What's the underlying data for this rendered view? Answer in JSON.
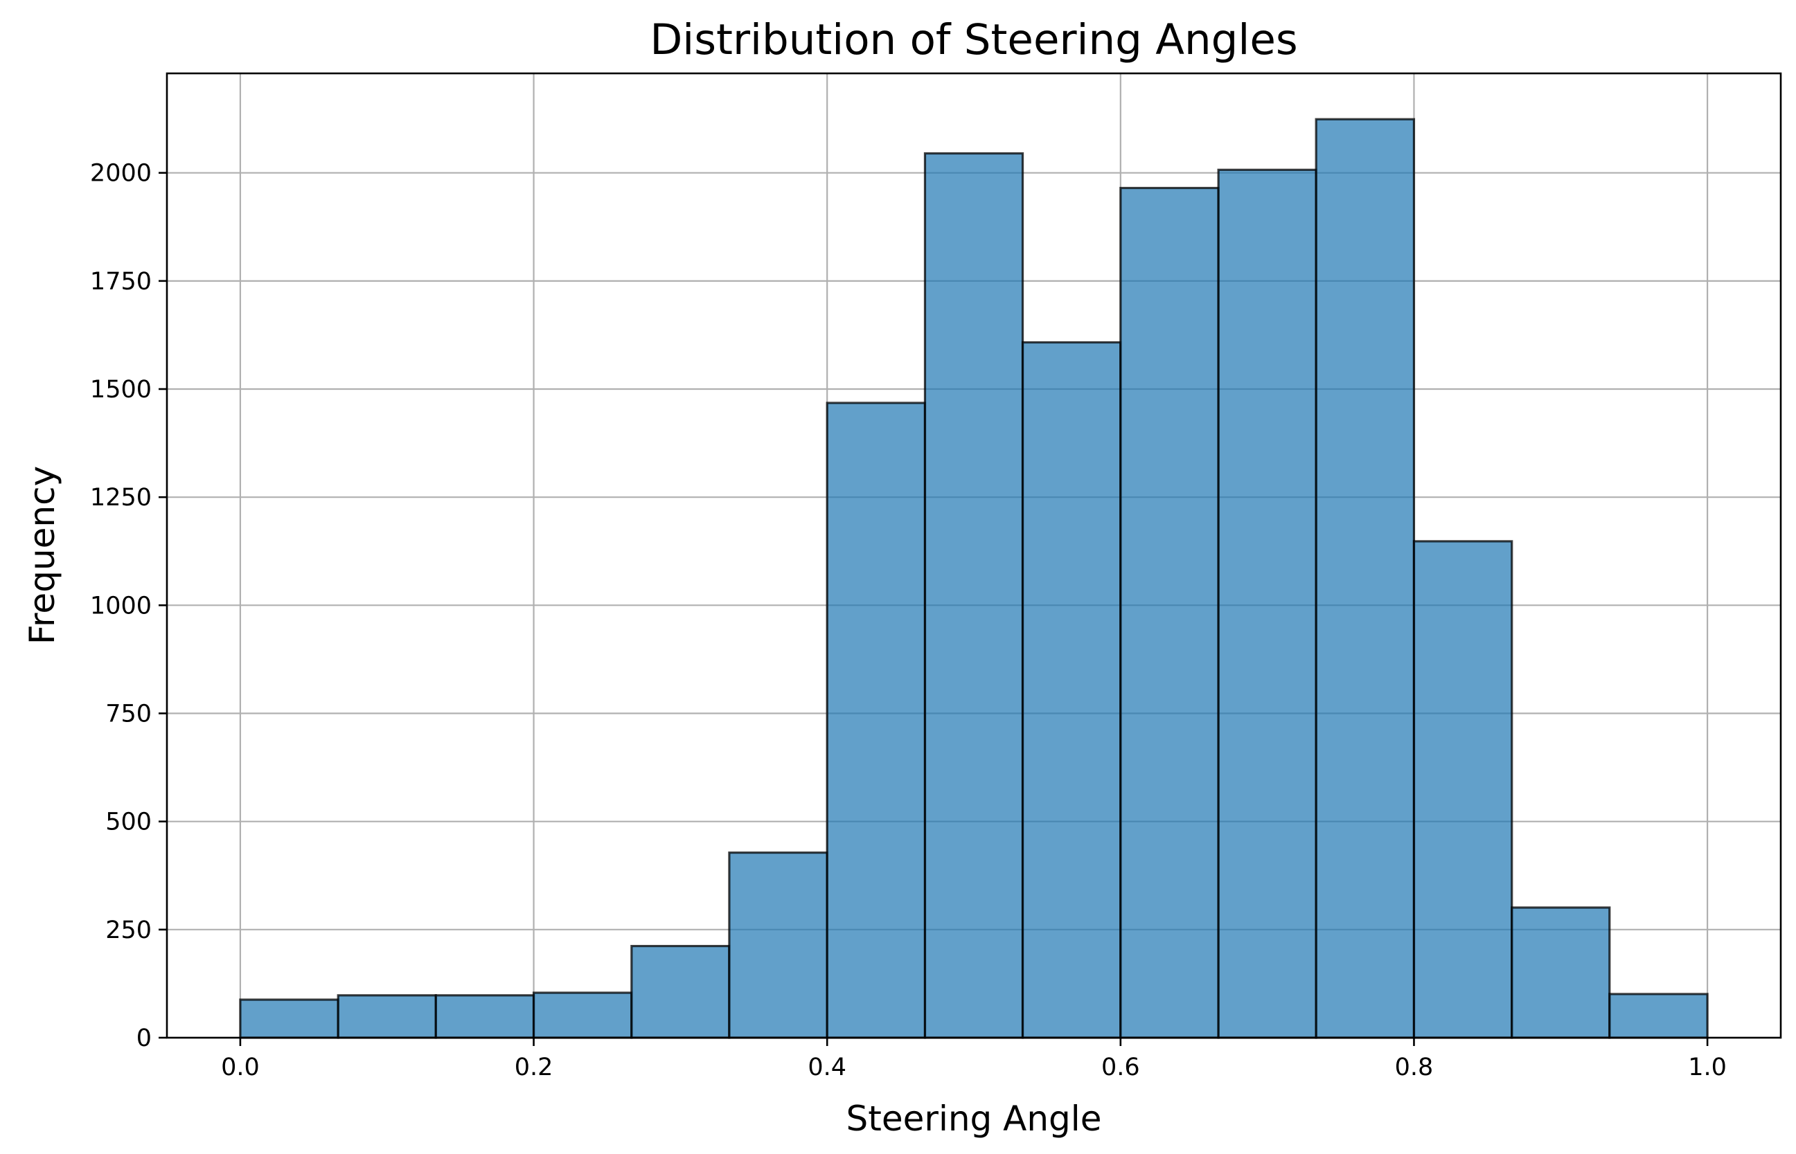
{
  "chart_data": {
    "type": "bar",
    "subtype": "histogram",
    "title": "Distribution of Steering Angles",
    "xlabel": "Steering Angle",
    "ylabel": "Frequency",
    "xlim": [
      -0.05,
      1.05
    ],
    "ylim": [
      0,
      2230
    ],
    "grid": true,
    "bar_color": "#1f77b4",
    "edge_color": "#000000",
    "x_ticks": [
      "0.0",
      "0.2",
      "0.4",
      "0.6",
      "0.8",
      "1.0"
    ],
    "y_ticks": [
      "0",
      "250",
      "500",
      "750",
      "1000",
      "1250",
      "1500",
      "1750",
      "2000"
    ],
    "bin_edges": [
      0.0,
      0.0667,
      0.1333,
      0.2,
      0.2667,
      0.3333,
      0.4,
      0.4667,
      0.5333,
      0.6,
      0.6667,
      0.7333,
      0.8,
      0.8667,
      0.9333,
      1.0
    ],
    "values": [
      88,
      98,
      98,
      104,
      212,
      428,
      1468,
      2045,
      1608,
      1965,
      2007,
      2124,
      1148,
      301,
      101
    ]
  }
}
